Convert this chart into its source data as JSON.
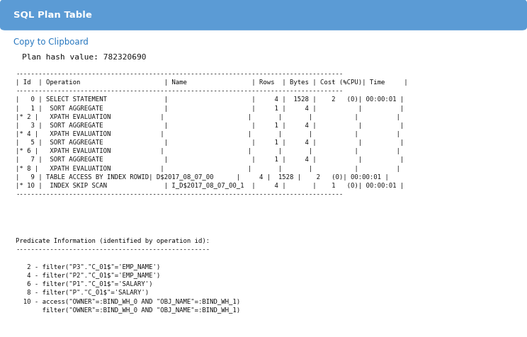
{
  "title": "SQL Plan Table",
  "title_bg_top": "#6aaee0",
  "title_bg_bot": "#4a8ec2",
  "title_bg_color": "#5b9bd5",
  "title_text_color": "#ffffff",
  "body_bg_color": "#f0f8ff",
  "inner_bg_color": "#ffffff",
  "border_color": "#7ab4d8",
  "link_color": "#2878c0",
  "link_text": "Copy to Clipboard",
  "plan_hash": "Plan hash value: 782320690",
  "table_text": "--------------------------------------------------------------------------------------\n| Id  | Operation                      | Name                 | Rows  | Bytes | Cost (%CPU)| Time     |\n--------------------------------------------------------------------------------------\n|   0 | SELECT STATEMENT               |                      |     4 |  1528 |    2   (0)| 00:00:01 |\n|   1 |  SORT AGGREGATE                |                      |     1 |     4 |           |          |\n|* 2 |   XPATH EVALUATION             |                      |       |       |           |          |\n|   3 |  SORT AGGREGATE                |                      |     1 |     4 |           |          |\n|* 4 |   XPATH EVALUATION             |                      |       |       |           |          |\n|   5 |  SORT AGGREGATE                |                      |     1 |     4 |           |          |\n|* 6 |   XPATH EVALUATION             |                      |       |       |           |          |\n|   7 |  SORT AGGREGATE                |                      |     1 |     4 |           |          |\n|* 8 |   XPATH EVALUATION             |                      |       |       |           |          |\n|   9 | TABLE ACCESS BY INDEX ROWID| D$2017_08_07_00      |     4 |  1528 |    2   (0)| 00:00:01 |\n|* 10 |  INDEX SKIP SCAN               | I_D$2017_08_07_00_1  |     4 |       |    1   (0)| 00:00:01 |\n--------------------------------------------------------------------------------------",
  "predicate_text": "Predicate Information (identified by operation id):\n---------------------------------------------------\n\n   2 - filter(\"P3\".\"C_01$\"='EMP_NAME')\n   4 - filter(\"P2\".\"C_01$\"='EMP_NAME')\n   6 - filter(\"P1\".\"C_01$\"='SALARY')\n   8 - filter(\"P\".\"C_01$\"='SALARY')\n  10 - access(\"OWNER\"=:BIND_WH_0 AND \"OBJ_NAME\"=:BIND_WH_1)\n       filter(\"OWNER\"=:BIND_WH_0 AND \"OBJ_NAME\"=:BIND_WH_1)",
  "mono_font_size": 6.5,
  "text_color": "#111111",
  "title_fontsize": 9.5,
  "link_fontsize": 8.5,
  "hash_fontsize": 8.0
}
